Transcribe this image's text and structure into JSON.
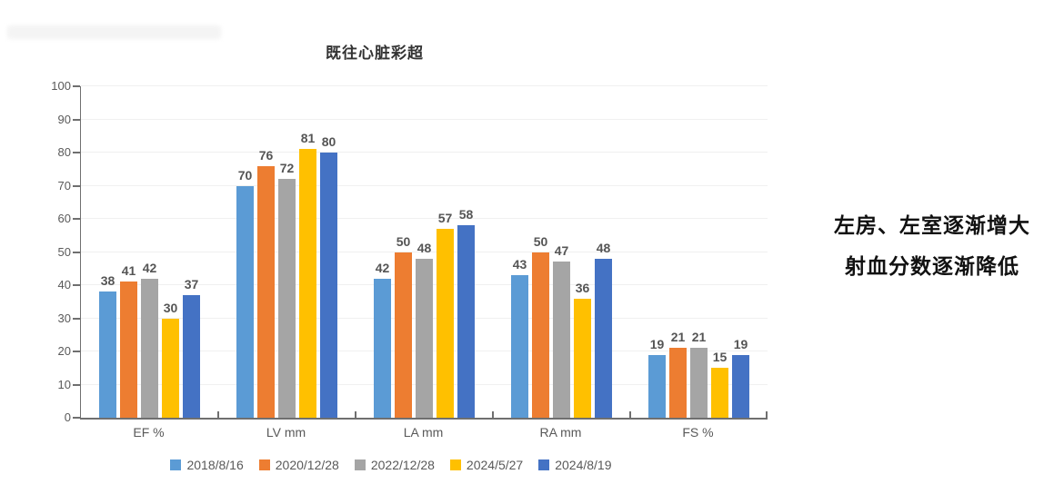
{
  "annotation": {
    "line1": "左房、左室逐渐增大",
    "line2": "射血分数逐渐降低"
  },
  "chart_data": {
    "type": "bar",
    "title": "既往心脏彩超",
    "categories": [
      "EF %",
      "LV mm",
      "LA mm",
      "RA mm",
      "FS %"
    ],
    "series": [
      {
        "name": "2018/8/16",
        "color": "#5B9BD5",
        "values": [
          38,
          70,
          42,
          43,
          19
        ]
      },
      {
        "name": "2020/12/28",
        "color": "#ED7D31",
        "values": [
          41,
          76,
          50,
          50,
          21
        ]
      },
      {
        "name": "2022/12/28",
        "color": "#A5A5A5",
        "values": [
          42,
          72,
          48,
          47,
          21
        ]
      },
      {
        "name": "2024/5/27",
        "color": "#FFC000",
        "values": [
          30,
          81,
          57,
          36,
          15
        ]
      },
      {
        "name": "2024/8/19",
        "color": "#4472C4",
        "values": [
          37,
          80,
          58,
          48,
          19
        ]
      }
    ],
    "ylim": [
      0,
      100
    ],
    "yticks": [
      0,
      10,
      20,
      30,
      40,
      50,
      60,
      70,
      80,
      90,
      100
    ],
    "grid": true,
    "legend_position": "bottom",
    "value_labels": true
  }
}
